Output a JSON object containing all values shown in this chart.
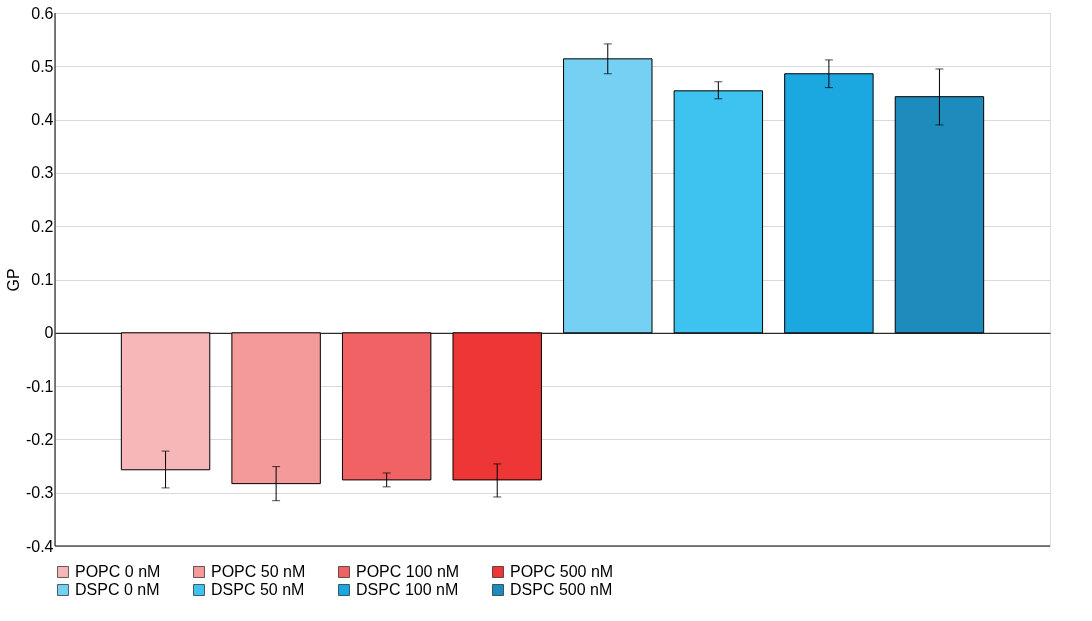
{
  "chart_data": {
    "type": "bar",
    "ylabel": "GP",
    "categories": [
      null
    ],
    "series": [
      {
        "name": "POPC 0 nM",
        "color": "#f7b6b8",
        "values": [
          -0.257
        ],
        "errors": [
          [
            -0.291,
            -0.222
          ]
        ]
      },
      {
        "name": "POPC 50 nM",
        "color": "#f49a9a",
        "values": [
          -0.283
        ],
        "errors": [
          [
            -0.315,
            -0.251
          ]
        ]
      },
      {
        "name": "POPC 100 nM",
        "color": "#f06264",
        "values": [
          -0.276
        ],
        "errors": [
          [
            -0.289,
            -0.263
          ]
        ]
      },
      {
        "name": "POPC 500 nM",
        "color": "#ee3636",
        "values": [
          -0.276
        ],
        "errors": [
          [
            -0.308,
            -0.246
          ]
        ]
      },
      {
        "name": "DSPC 0 nM",
        "color": "#75d0f3",
        "values": [
          0.514
        ],
        "errors": [
          [
            0.486,
            0.542
          ]
        ]
      },
      {
        "name": "DSPC 50 nM",
        "color": "#3ec3f0",
        "values": [
          0.454
        ],
        "errors": [
          [
            0.439,
            0.471
          ]
        ]
      },
      {
        "name": "DSPC 100 nM",
        "color": "#1ba7e0",
        "values": [
          0.486
        ],
        "errors": [
          [
            0.46,
            0.512
          ]
        ]
      },
      {
        "name": "DSPC 500 nM",
        "color": "#1e8bbd",
        "values": [
          0.443
        ],
        "errors": [
          [
            0.39,
            0.495
          ]
        ]
      }
    ],
    "ylim": [
      -0.4,
      0.6
    ],
    "yticks": [
      -0.4,
      -0.3,
      -0.2,
      -0.1,
      0,
      0.1,
      0.2,
      0.3,
      0.4,
      0.5,
      0.6
    ],
    "grid": "y",
    "legend": "bottom"
  }
}
